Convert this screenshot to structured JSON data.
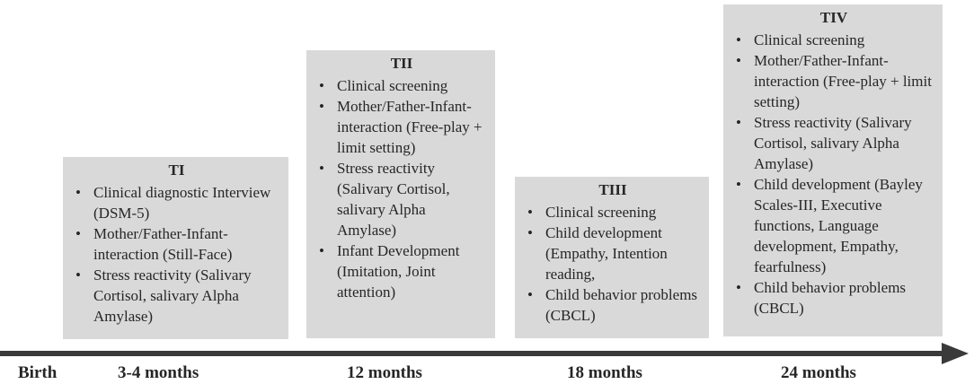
{
  "colors": {
    "box_fill": "#d9d9d9",
    "arrow": "#3a3a3a",
    "text": "#262626"
  },
  "timeline": {
    "labels": [
      "Birth",
      "3-4 months",
      "12 months",
      "18 months",
      "24 months"
    ]
  },
  "boxes": [
    {
      "title": "TI",
      "items": [
        "Clinical diagnostic Interview (DSM-5)",
        "Mother/Father-Infant-interaction (Still-Face)",
        "Stress reactivity (Salivary Cortisol, salivary Alpha Amylase)"
      ]
    },
    {
      "title": "TII",
      "items": [
        "Clinical screening",
        "Mother/Father-Infant-interaction (Free-play + limit setting)",
        "Stress reactivity (Salivary Cortisol, salivary Alpha Amylase)",
        "Infant Development (Imitation, Joint attention)"
      ]
    },
    {
      "title": "TIII",
      "items": [
        "Clinical screening",
        "Child development (Empathy, Intention reading,",
        "Child behavior problems (CBCL)"
      ]
    },
    {
      "title": "TIV",
      "items": [
        "Clinical screening",
        "Mother/Father-Infant-interaction (Free-play + limit setting)",
        "Stress reactivity (Salivary Cortisol, salivary Alpha Amylase)",
        "Child development (Bayley Scales-III, Executive functions, Language development, Empathy, fearfulness)",
        "Child behavior problems (CBCL)"
      ]
    }
  ]
}
